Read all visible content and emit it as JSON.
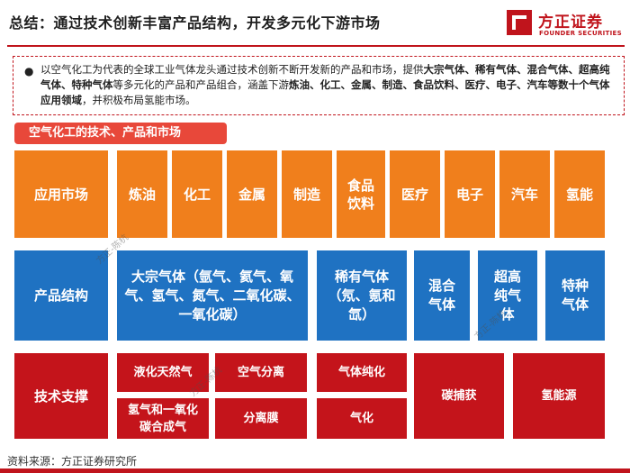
{
  "title": "总结：通过技术创新丰富产品结构，开发多元化下游市场",
  "logo": {
    "name": "方正证券",
    "english": "FOUNDER SECURITIES",
    "color": "#c0141c"
  },
  "summary": {
    "bullet": "●",
    "parts": [
      {
        "text": "以空气化工为代表的全球工业气体龙头通过技术创新不断开发新的产品和市场，提供",
        "bold": false
      },
      {
        "text": "大宗气体、稀有气体、混合气体、超高纯气体、特种气体",
        "bold": true
      },
      {
        "text": "等多元化的产品和产品组合，涵盖下游",
        "bold": false
      },
      {
        "text": "炼油、化工、金属、制造、食品饮料、医疗、电子、汽车等数十个气体应用领域",
        "bold": true
      },
      {
        "text": "，并积极布局氢能市场。",
        "bold": false
      }
    ]
  },
  "section_label": "空气化工的技术、产品和市场",
  "market": {
    "header": "应用市场",
    "items": [
      "炼油",
      "化工",
      "金属",
      "制造",
      "食品饮料",
      "医疗",
      "电子",
      "汽车",
      "氢能"
    ]
  },
  "products": {
    "header": "产品结构",
    "bulk": "大宗气体（氩气、氦气、氧气、氢气、氮气、二氧化碳、一氧化碳）",
    "rare": "稀有气体（氖、氪和氙）",
    "mixed": "混合气体",
    "ultra": "超高纯气体",
    "special": "特种气体"
  },
  "tech": {
    "header": "技术支撑",
    "items": [
      "液化天然气",
      "空气分离",
      "氢气和一氧化碳合成气",
      "分离膜",
      "气体纯化",
      "气化",
      "碳捕获",
      "氢能源"
    ]
  },
  "watermark": "方正-陈杭",
  "source": "资料来源：方正证券研究所",
  "colors": {
    "orange": "#f07f1c",
    "blue": "#1f72c2",
    "red": "#c4141b",
    "accent": "#c0141c"
  }
}
